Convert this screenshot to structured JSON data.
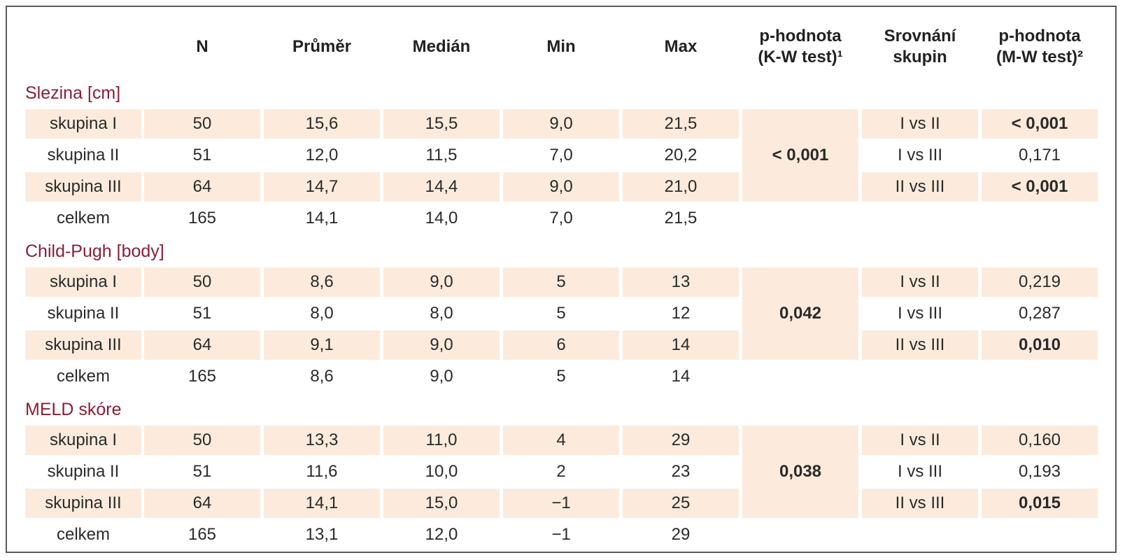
{
  "headers": {
    "row_label": "",
    "n": "N",
    "mean": "Průměr",
    "median": "Medián",
    "min": "Min",
    "max": "Max",
    "kw_line1": "p-hodnota",
    "kw_line2": "(K-W test)¹",
    "cmp_line1": "Srovnání",
    "cmp_line2": "skupin",
    "mw_line1": "p-hodnota",
    "mw_line2": "(M-W test)²"
  },
  "colors": {
    "section_title": "#8a1f37",
    "shade": "#fcebdc",
    "border": "#5a5a5a",
    "text": "#2a2a2a"
  },
  "sections": [
    {
      "title": "Slezina [cm]",
      "kw_p": "< 0,001",
      "rows": [
        {
          "label": "skupina I",
          "n": "50",
          "mean": "15,6",
          "median": "15,5",
          "min": "9,0",
          "max": "21,5",
          "cmp": "I vs II",
          "mw_p": "< 0,001",
          "mw_bold": true
        },
        {
          "label": "skupina II",
          "n": "51",
          "mean": "12,0",
          "median": "11,5",
          "min": "7,0",
          "max": "20,2",
          "cmp": "I vs III",
          "mw_p": "0,171",
          "mw_bold": false
        },
        {
          "label": "skupina III",
          "n": "64",
          "mean": "14,7",
          "median": "14,4",
          "min": "9,0",
          "max": "21,0",
          "cmp": "II vs III",
          "mw_p": "< 0,001",
          "mw_bold": true
        },
        {
          "label": "celkem",
          "n": "165",
          "mean": "14,1",
          "median": "14,0",
          "min": "7,0",
          "max": "21,5",
          "cmp": "",
          "mw_p": "",
          "mw_bold": false
        }
      ]
    },
    {
      "title": "Child-Pugh [body]",
      "kw_p": "0,042",
      "rows": [
        {
          "label": "skupina I",
          "n": "50",
          "mean": "8,6",
          "median": "9,0",
          "min": "5",
          "max": "13",
          "cmp": "I vs II",
          "mw_p": "0,219",
          "mw_bold": false
        },
        {
          "label": "skupina II",
          "n": "51",
          "mean": "8,0",
          "median": "8,0",
          "min": "5",
          "max": "12",
          "cmp": "I vs III",
          "mw_p": "0,287",
          "mw_bold": false
        },
        {
          "label": "skupina III",
          "n": "64",
          "mean": "9,1",
          "median": "9,0",
          "min": "6",
          "max": "14",
          "cmp": "II vs III",
          "mw_p": "0,010",
          "mw_bold": true
        },
        {
          "label": "celkem",
          "n": "165",
          "mean": "8,6",
          "median": "9,0",
          "min": "5",
          "max": "14",
          "cmp": "",
          "mw_p": "",
          "mw_bold": false
        }
      ]
    },
    {
      "title": "MELD skóre",
      "kw_p": "0,038",
      "rows": [
        {
          "label": "skupina I",
          "n": "50",
          "mean": "13,3",
          "median": "11,0",
          "min": "4",
          "max": "29",
          "cmp": "I vs II",
          "mw_p": "0,160",
          "mw_bold": false
        },
        {
          "label": "skupina II",
          "n": "51",
          "mean": "11,6",
          "median": "10,0",
          "min": "2",
          "max": "23",
          "cmp": "I vs III",
          "mw_p": "0,193",
          "mw_bold": false
        },
        {
          "label": "skupina III",
          "n": "64",
          "mean": "14,1",
          "median": "15,0",
          "min": "−1",
          "max": "25",
          "cmp": "II vs III",
          "mw_p": "0,015",
          "mw_bold": true
        },
        {
          "label": "celkem",
          "n": "165",
          "mean": "13,1",
          "median": "12,0",
          "min": "−1",
          "max": "29",
          "cmp": "",
          "mw_p": "",
          "mw_bold": false
        }
      ]
    }
  ]
}
